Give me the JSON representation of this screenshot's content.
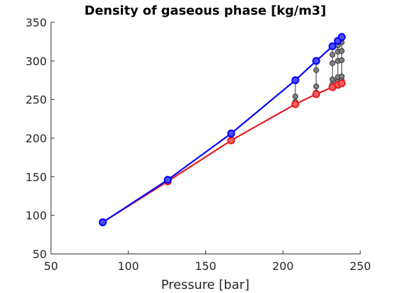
{
  "chart_data": {
    "type": "line",
    "title": "Density of gaseous phase [kg/m3]",
    "xlabel": "Pressure [bar]",
    "ylabel": "",
    "xlim": [
      50,
      250
    ],
    "ylim": [
      50,
      350
    ],
    "xticks": [
      50,
      100,
      150,
      200,
      250
    ],
    "yticks": [
      50,
      100,
      150,
      200,
      250,
      300,
      350
    ],
    "grid": false,
    "series": [
      {
        "color": "#0000ff",
        "marker_fill": "#4d4dff",
        "x": [
          83.5,
          125.5,
          166.5,
          208,
          221.5,
          232,
          235.5,
          238
        ],
        "y": [
          91,
          146,
          206,
          275,
          300,
          319,
          326,
          331
        ]
      },
      {
        "color": "#e41a1c",
        "marker_fill": "#f06060",
        "x": [
          83.5,
          125.5,
          166.5,
          208,
          221.5,
          232,
          235.5,
          238
        ],
        "y": [
          91,
          144,
          197,
          244,
          257,
          266,
          269,
          271
        ]
      }
    ],
    "intermediate_points": {
      "color": "#808080",
      "x": [
        208,
        208,
        221.5,
        221.5,
        221.5,
        232,
        232,
        232,
        232,
        235.5,
        235.5,
        235.5,
        235.5,
        235.5,
        238,
        238,
        238,
        238,
        238,
        238
      ],
      "y": [
        247,
        254,
        259,
        267,
        288,
        270,
        276,
        297,
        308,
        274,
        279,
        300,
        312,
        320,
        275,
        280,
        301,
        313,
        324,
        329
      ]
    }
  }
}
